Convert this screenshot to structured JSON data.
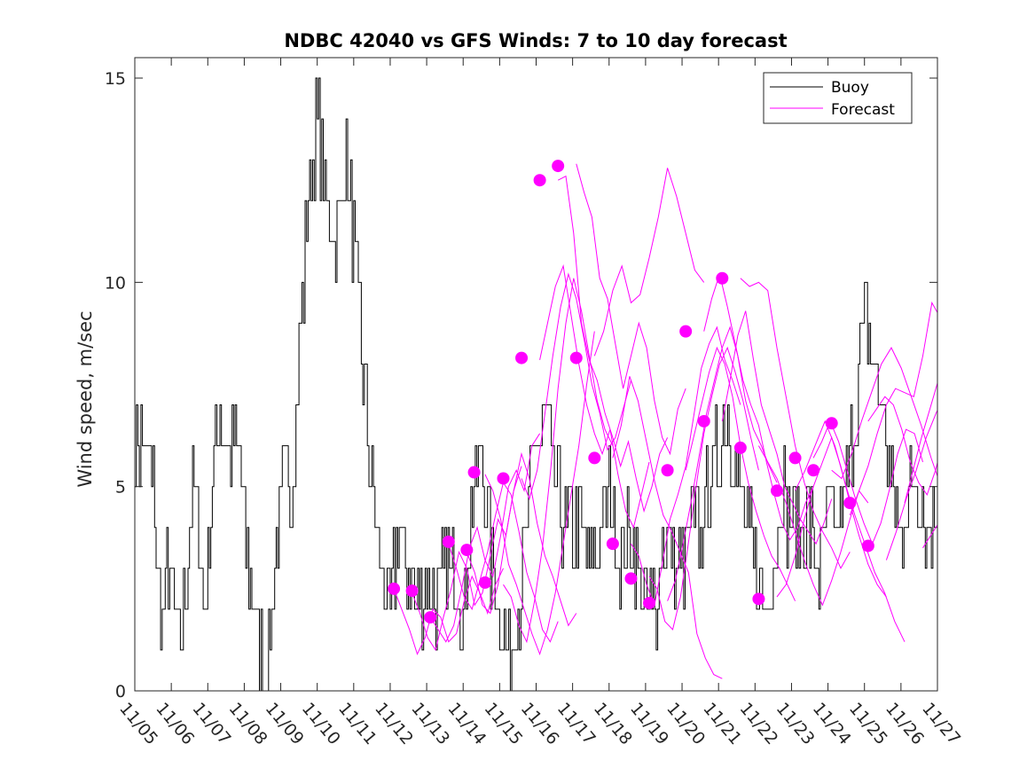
{
  "chart_data": {
    "type": "line",
    "title": "NDBC 42040 vs GFS Winds: 7 to 10 day forecast",
    "xlabel": "",
    "ylabel": "Wind speed, m/sec",
    "ylim": [
      0,
      15.5
    ],
    "xlim": [
      0,
      22
    ],
    "yticks": [
      0,
      5,
      10,
      15
    ],
    "ytick_labels": [
      "0",
      "5",
      "10",
      "15"
    ],
    "xtick_labels": [
      "11/05",
      "11/06",
      "11/07",
      "11/08",
      "11/09",
      "11/10",
      "11/11",
      "11/12",
      "11/13",
      "11/14",
      "11/15",
      "11/16",
      "11/17",
      "11/18",
      "11/19",
      "11/20",
      "11/21",
      "11/22",
      "11/23",
      "11/24",
      "11/25",
      "11/26",
      "11/27"
    ],
    "legend": {
      "location": "top-right",
      "entries": [
        "Buoy",
        "Forecast"
      ]
    },
    "colors": {
      "buoy": "#000000",
      "forecast": "#ff00ff"
    },
    "buoy_keypoints": [
      [
        0,
        6
      ],
      [
        0.25,
        6
      ],
      [
        0.5,
        5
      ],
      [
        0.6,
        3
      ],
      [
        0.75,
        2
      ],
      [
        0.9,
        3
      ],
      [
        1.1,
        2
      ],
      [
        1.25,
        1
      ],
      [
        1.4,
        3
      ],
      [
        1.55,
        5
      ],
      [
        1.75,
        4
      ],
      [
        1.9,
        2
      ],
      [
        2.05,
        4
      ],
      [
        2.3,
        7
      ],
      [
        2.6,
        6
      ],
      [
        2.85,
        6
      ],
      [
        3.0,
        4
      ],
      [
        3.25,
        2
      ],
      [
        3.45,
        1
      ],
      [
        3.6,
        0
      ],
      [
        3.75,
        2
      ],
      [
        3.9,
        4
      ],
      [
        4.1,
        5
      ],
      [
        4.3,
        5
      ],
      [
        4.5,
        8
      ],
      [
        4.75,
        12
      ],
      [
        5.0,
        14
      ],
      [
        5.25,
        12
      ],
      [
        5.5,
        11
      ],
      [
        5.75,
        13
      ],
      [
        6.0,
        11
      ],
      [
        6.25,
        8
      ],
      [
        6.5,
        5
      ],
      [
        6.75,
        3
      ],
      [
        7.0,
        2
      ],
      [
        7.25,
        4
      ],
      [
        7.5,
        3
      ],
      [
        7.75,
        2
      ],
      [
        8.0,
        3
      ],
      [
        8.25,
        2
      ],
      [
        8.5,
        3
      ],
      [
        8.75,
        3
      ],
      [
        9.0,
        2
      ],
      [
        9.25,
        5
      ],
      [
        9.5,
        6
      ],
      [
        9.75,
        3
      ],
      [
        10.0,
        2
      ],
      [
        10.25,
        1
      ],
      [
        10.5,
        2
      ],
      [
        10.75,
        4
      ],
      [
        11.0,
        6
      ],
      [
        11.25,
        7
      ],
      [
        11.5,
        5
      ],
      [
        11.75,
        4
      ],
      [
        12.0,
        4
      ],
      [
        12.25,
        4
      ],
      [
        12.5,
        3
      ],
      [
        12.75,
        4
      ],
      [
        13.0,
        5
      ],
      [
        13.25,
        3
      ],
      [
        13.5,
        4
      ],
      [
        13.75,
        3
      ],
      [
        14.0,
        2
      ],
      [
        14.25,
        2
      ],
      [
        14.5,
        4
      ],
      [
        14.75,
        3
      ],
      [
        15.0,
        3
      ],
      [
        15.25,
        4
      ],
      [
        15.5,
        4
      ],
      [
        15.75,
        5
      ],
      [
        16.0,
        6
      ],
      [
        16.25,
        7
      ],
      [
        16.5,
        5
      ],
      [
        16.75,
        4
      ],
      [
        17.0,
        3
      ],
      [
        17.25,
        2
      ],
      [
        17.5,
        3
      ],
      [
        17.75,
        5
      ],
      [
        18.0,
        4
      ],
      [
        18.25,
        4
      ],
      [
        18.5,
        4
      ],
      [
        18.75,
        3
      ],
      [
        19.0,
        4
      ],
      [
        19.25,
        4
      ],
      [
        19.5,
        5
      ],
      [
        19.75,
        7
      ],
      [
        20.0,
        9
      ],
      [
        20.25,
        8
      ],
      [
        20.5,
        7
      ],
      [
        20.75,
        5
      ],
      [
        21.0,
        4
      ],
      [
        21.25,
        5
      ],
      [
        21.5,
        5
      ],
      [
        21.75,
        4
      ],
      [
        22.0,
        5
      ]
    ],
    "forecast_runs": [
      {
        "start": 7.1,
        "values": [
          2.5,
          2.0,
          1.5,
          0.9,
          1.3,
          2.0,
          1.8,
          1.2,
          1.4,
          2.2,
          2.8,
          2.4,
          1.9,
          2.6,
          3.0
        ]
      },
      {
        "start": 7.6,
        "values": [
          2.4,
          1.9,
          1.3,
          1.0,
          1.8,
          2.5,
          3.4,
          3.0,
          2.1,
          2.4,
          3.3,
          4.2,
          3.8,
          4.9,
          5.5
        ]
      },
      {
        "start": 8.1,
        "values": [
          1.8,
          1.5,
          1.2,
          1.6,
          2.5,
          3.5,
          4.0,
          3.2,
          2.8,
          3.8,
          5.0,
          5.4,
          4.9,
          6.0,
          6.3
        ]
      },
      {
        "start": 8.6,
        "values": [
          3.6,
          3.0,
          2.3,
          2.0,
          2.7,
          3.4,
          4.3,
          5.1,
          4.8,
          3.9,
          2.9,
          2.3,
          1.5,
          1.2,
          1.7
        ]
      },
      {
        "start": 9.1,
        "values": [
          3.4,
          2.9,
          2.1,
          1.9,
          2.6,
          3.8,
          4.9,
          5.8,
          5.2,
          4.1,
          3.3,
          2.8,
          2.2,
          1.6,
          1.9
        ]
      },
      {
        "start": 9.6,
        "values": [
          5.3,
          4.9,
          4.2,
          3.1,
          2.6,
          2.0,
          1.4,
          0.9,
          1.5,
          2.4,
          3.6,
          4.8,
          6.0,
          7.5,
          8.8
        ]
      },
      {
        "start": 10.1,
        "values": [
          2.6,
          2.3,
          1.6,
          1.2,
          2.2,
          3.5,
          5.3,
          7.4,
          9.0,
          10.1,
          9.3,
          8.2,
          7.1,
          6.4,
          6.0
        ]
      },
      {
        "start": 10.6,
        "values": [
          5.2,
          4.7,
          5.4,
          6.8,
          8.2,
          9.4,
          10.2,
          9.6,
          8.6,
          7.5,
          6.8,
          5.9,
          6.2,
          6.9,
          7.6
        ]
      },
      {
        "start": 11.1,
        "values": [
          8.1,
          9.0,
          9.9,
          10.4,
          9.2,
          8.0,
          7.0,
          6.3,
          5.8,
          6.4,
          5.3,
          4.4,
          4.0,
          4.8,
          5.6
        ]
      },
      {
        "start": 11.6,
        "values": [
          12.5,
          12.6,
          11.2,
          9.0,
          8.1,
          7.6,
          6.8,
          6.2,
          5.5,
          6.1,
          5.2,
          4.4,
          5.0,
          5.8,
          6.2
        ]
      },
      {
        "start": 12.1,
        "values": [
          12.9,
          12.2,
          11.6,
          10.1,
          9.6,
          8.5,
          7.4,
          8.2,
          9.0,
          8.4,
          7.1,
          6.2,
          5.8,
          6.9,
          7.4
        ]
      },
      {
        "start": 12.6,
        "values": [
          8.2,
          8.8,
          9.8,
          10.4,
          9.5,
          9.7,
          10.6,
          11.6,
          12.8,
          12.1,
          11.2,
          10.3,
          10.0
        ]
      },
      {
        "start": 13.1,
        "values": [
          5.7,
          6.5,
          7.7,
          7.1,
          6.1,
          5.1,
          4.3,
          3.9,
          3.4,
          2.9,
          1.4,
          0.8,
          0.4,
          0.3
        ]
      },
      {
        "start": 13.6,
        "values": [
          3.6,
          3.3,
          2.6,
          2.1,
          3.1,
          4.2,
          4.8,
          5.5,
          6.7,
          7.9,
          8.5,
          8.9,
          8.1,
          7.6,
          7.0
        ]
      },
      {
        "start": 14.1,
        "values": [
          2.8,
          2.5,
          1.7,
          1.5,
          2.3,
          3.6,
          5.0,
          6.3,
          7.2,
          8.0,
          8.4,
          7.8,
          7.1,
          6.2,
          5.4
        ]
      },
      {
        "start": 14.6,
        "values": [
          2.2,
          2.7,
          3.6,
          4.6,
          5.7,
          6.8,
          7.6,
          8.4,
          8.9,
          8.2,
          7.1,
          6.4,
          6.0,
          5.5,
          5.1
        ]
      },
      {
        "start": 15.1,
        "values": [
          5.4,
          6.2,
          7.0,
          7.8,
          8.4,
          8.0,
          7.2,
          6.0,
          5.1,
          4.4,
          3.8,
          3.3,
          3.0,
          2.6,
          2.2
        ]
      },
      {
        "start": 15.6,
        "values": [
          8.8,
          9.6,
          10.2,
          9.4,
          8.5,
          7.6,
          7.0,
          6.5,
          5.6,
          4.8,
          4.1,
          3.7,
          4.0,
          4.6,
          5.0
        ]
      },
      {
        "start": 16.1,
        "values": [
          6.6,
          7.6,
          8.7,
          9.3,
          8.1,
          7.0,
          6.4,
          5.8,
          5.0,
          4.6,
          4.2,
          3.9,
          3.6,
          4.1,
          4.7
        ]
      },
      {
        "start": 16.6,
        "values": [
          10.1,
          9.9,
          10.0,
          9.8,
          8.4,
          7.2,
          6.0,
          5.1,
          4.4,
          3.9,
          3.5,
          3.0,
          3.4
        ]
      },
      {
        "start": 17.1,
        "values": [
          6.0,
          5.6,
          5.2,
          4.6,
          3.9,
          3.2,
          2.6,
          2.1,
          2.7,
          3.4,
          4.2,
          4.9,
          4.6
        ]
      },
      {
        "start": 17.6,
        "values": [
          2.3,
          2.6,
          3.3,
          4.2,
          5.0,
          5.6,
          6.2,
          5.5,
          4.6,
          3.8,
          3.1,
          2.6,
          2.3
        ]
      },
      {
        "start": 18.1,
        "values": [
          4.9,
          5.4,
          6.0,
          6.6,
          6.0,
          5.1,
          4.3,
          3.6,
          2.9,
          2.4,
          1.7,
          1.2
        ]
      },
      {
        "start": 18.6,
        "values": [
          5.7,
          6.1,
          6.6,
          6.1,
          5.4,
          4.7,
          4.1,
          3.6,
          4.1,
          4.9,
          5.8,
          6.4,
          6.3,
          5.6
        ]
      },
      {
        "start": 19.1,
        "values": [
          5.4,
          5.2,
          5.8,
          6.6,
          7.3,
          8.0,
          8.4,
          7.9,
          7.2,
          6.5,
          5.7,
          5.0
        ]
      },
      {
        "start": 19.6,
        "values": [
          4.3,
          4.9,
          5.5,
          6.3,
          7.0,
          7.4,
          7.3,
          7.2,
          8.2,
          9.5,
          9.1,
          8.5,
          7.5
        ]
      },
      {
        "start": 20.1,
        "values": [
          6.6,
          6.9,
          7.2,
          7.0,
          6.4,
          5.6,
          5.1,
          4.8,
          5.4,
          6.2,
          6.5,
          5.9,
          5.3,
          5.0
        ]
      },
      {
        "start": 20.6,
        "values": [
          3.2,
          3.9,
          4.7,
          5.4,
          6.2,
          6.8,
          7.3,
          7.1,
          6.5,
          5.8,
          5.2,
          4.9
        ]
      },
      {
        "start": 21.1,
        "values": [
          4.6,
          5.4,
          6.2,
          6.9,
          7.6,
          8.4,
          9.1,
          8.6,
          7.4,
          6.1,
          4.8,
          3.7,
          3.0,
          2.6
        ]
      },
      {
        "start": 21.6,
        "values": [
          3.5,
          4.1,
          4.8,
          5.6,
          6.1,
          5.7,
          5.2,
          4.9
        ]
      }
    ],
    "forecast_markers": [
      [
        7.1,
        2.5
      ],
      [
        7.6,
        2.45
      ],
      [
        8.1,
        1.8
      ],
      [
        8.6,
        3.65
      ],
      [
        9.1,
        3.45
      ],
      [
        9.3,
        5.35
      ],
      [
        9.6,
        2.65
      ],
      [
        10.1,
        5.2
      ],
      [
        10.6,
        8.15
      ],
      [
        11.1,
        12.5
      ],
      [
        11.6,
        12.85
      ],
      [
        12.1,
        8.15
      ],
      [
        12.6,
        5.7
      ],
      [
        13.1,
        3.6
      ],
      [
        13.6,
        2.75
      ],
      [
        14.1,
        2.15
      ],
      [
        14.6,
        5.4
      ],
      [
        15.1,
        8.8
      ],
      [
        15.6,
        6.6
      ],
      [
        16.1,
        10.1
      ],
      [
        16.6,
        5.95
      ],
      [
        17.1,
        2.25
      ],
      [
        17.6,
        4.9
      ],
      [
        18.1,
        5.7
      ],
      [
        18.6,
        5.4
      ],
      [
        19.1,
        6.55
      ],
      [
        19.6,
        4.6
      ],
      [
        20.1,
        3.55
      ]
    ]
  }
}
